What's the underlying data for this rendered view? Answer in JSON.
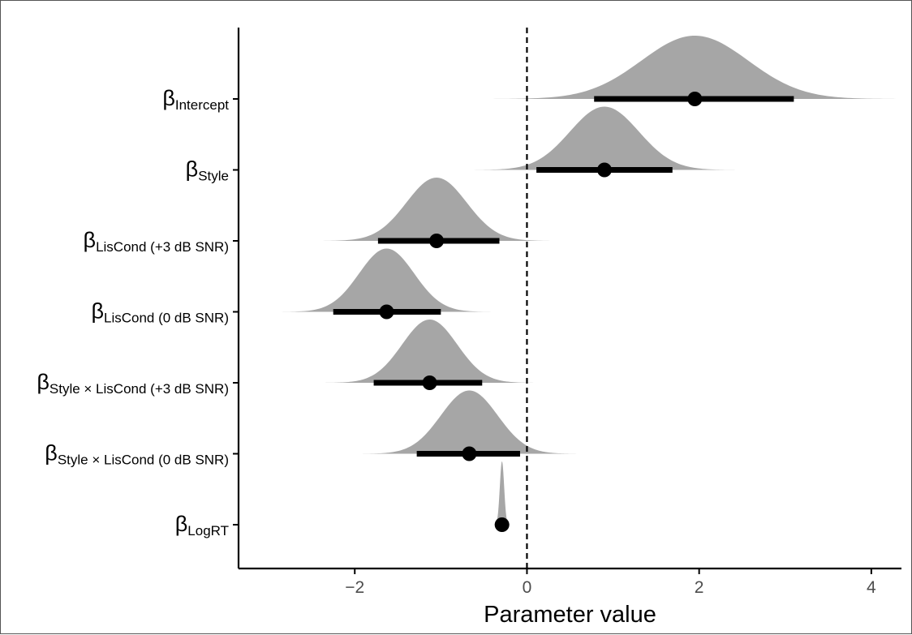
{
  "chart_data": {
    "type": "halfeye",
    "xlabel": "Parameter value",
    "ylabel": "",
    "title": "",
    "xlim": [
      -3.35,
      4.35
    ],
    "xticks": [
      -2,
      0,
      2,
      4
    ],
    "xtick_labels": [
      "−2",
      "0",
      "2",
      "4"
    ],
    "reference_line": 0,
    "grid": false,
    "colors": {
      "density": "#a6a6a6",
      "interval": "#000000",
      "point": "#000000",
      "axis": "#000000"
    },
    "series": [
      {
        "label_base": "β",
        "label_sub": "Intercept",
        "median": 1.95,
        "interval": [
          0.78,
          3.1
        ],
        "density_range": [
          -1.6,
          4.4
        ],
        "sd": 0.62,
        "density_peak_px": 78
      },
      {
        "label_base": "β",
        "label_sub": "Style",
        "median": 0.9,
        "interval": [
          0.11,
          1.69
        ],
        "density_range": [
          -1.45,
          2.6
        ],
        "sd": 0.4,
        "density_peak_px": 78
      },
      {
        "label_base": "β",
        "label_sub": "LisCond (+3 dB SNR)",
        "median": -1.05,
        "interval": [
          -1.73,
          -0.32
        ],
        "density_range": [
          -3.3,
          1.2
        ],
        "sd": 0.35,
        "density_peak_px": 78
      },
      {
        "label_base": "β",
        "label_sub": "LisCond (0 dB SNR)",
        "median": -1.63,
        "interval": [
          -2.25,
          -1.0
        ],
        "density_range": [
          -2.95,
          0.95
        ],
        "sd": 0.32,
        "density_peak_px": 78
      },
      {
        "label_base": "β",
        "label_sub": "Style × LisCond (+3 dB SNR)",
        "median": -1.13,
        "interval": [
          -1.78,
          -0.52
        ],
        "density_range": [
          -2.45,
          0.3
        ],
        "sd": 0.32,
        "density_peak_px": 78
      },
      {
        "label_base": "β",
        "label_sub": "Style × LisCond (0 dB SNR)",
        "median": -0.67,
        "interval": [
          -1.28,
          -0.08
        ],
        "density_range": [
          -1.95,
          0.8
        ],
        "sd": 0.33,
        "density_peak_px": 78
      },
      {
        "label_base": "β",
        "label_sub": "LogRT",
        "median": -0.29,
        "interval": [
          -0.33,
          -0.25
        ],
        "density_range": [
          -0.4,
          -0.18
        ],
        "sd": 0.025,
        "density_peak_px": 78
      }
    ]
  }
}
